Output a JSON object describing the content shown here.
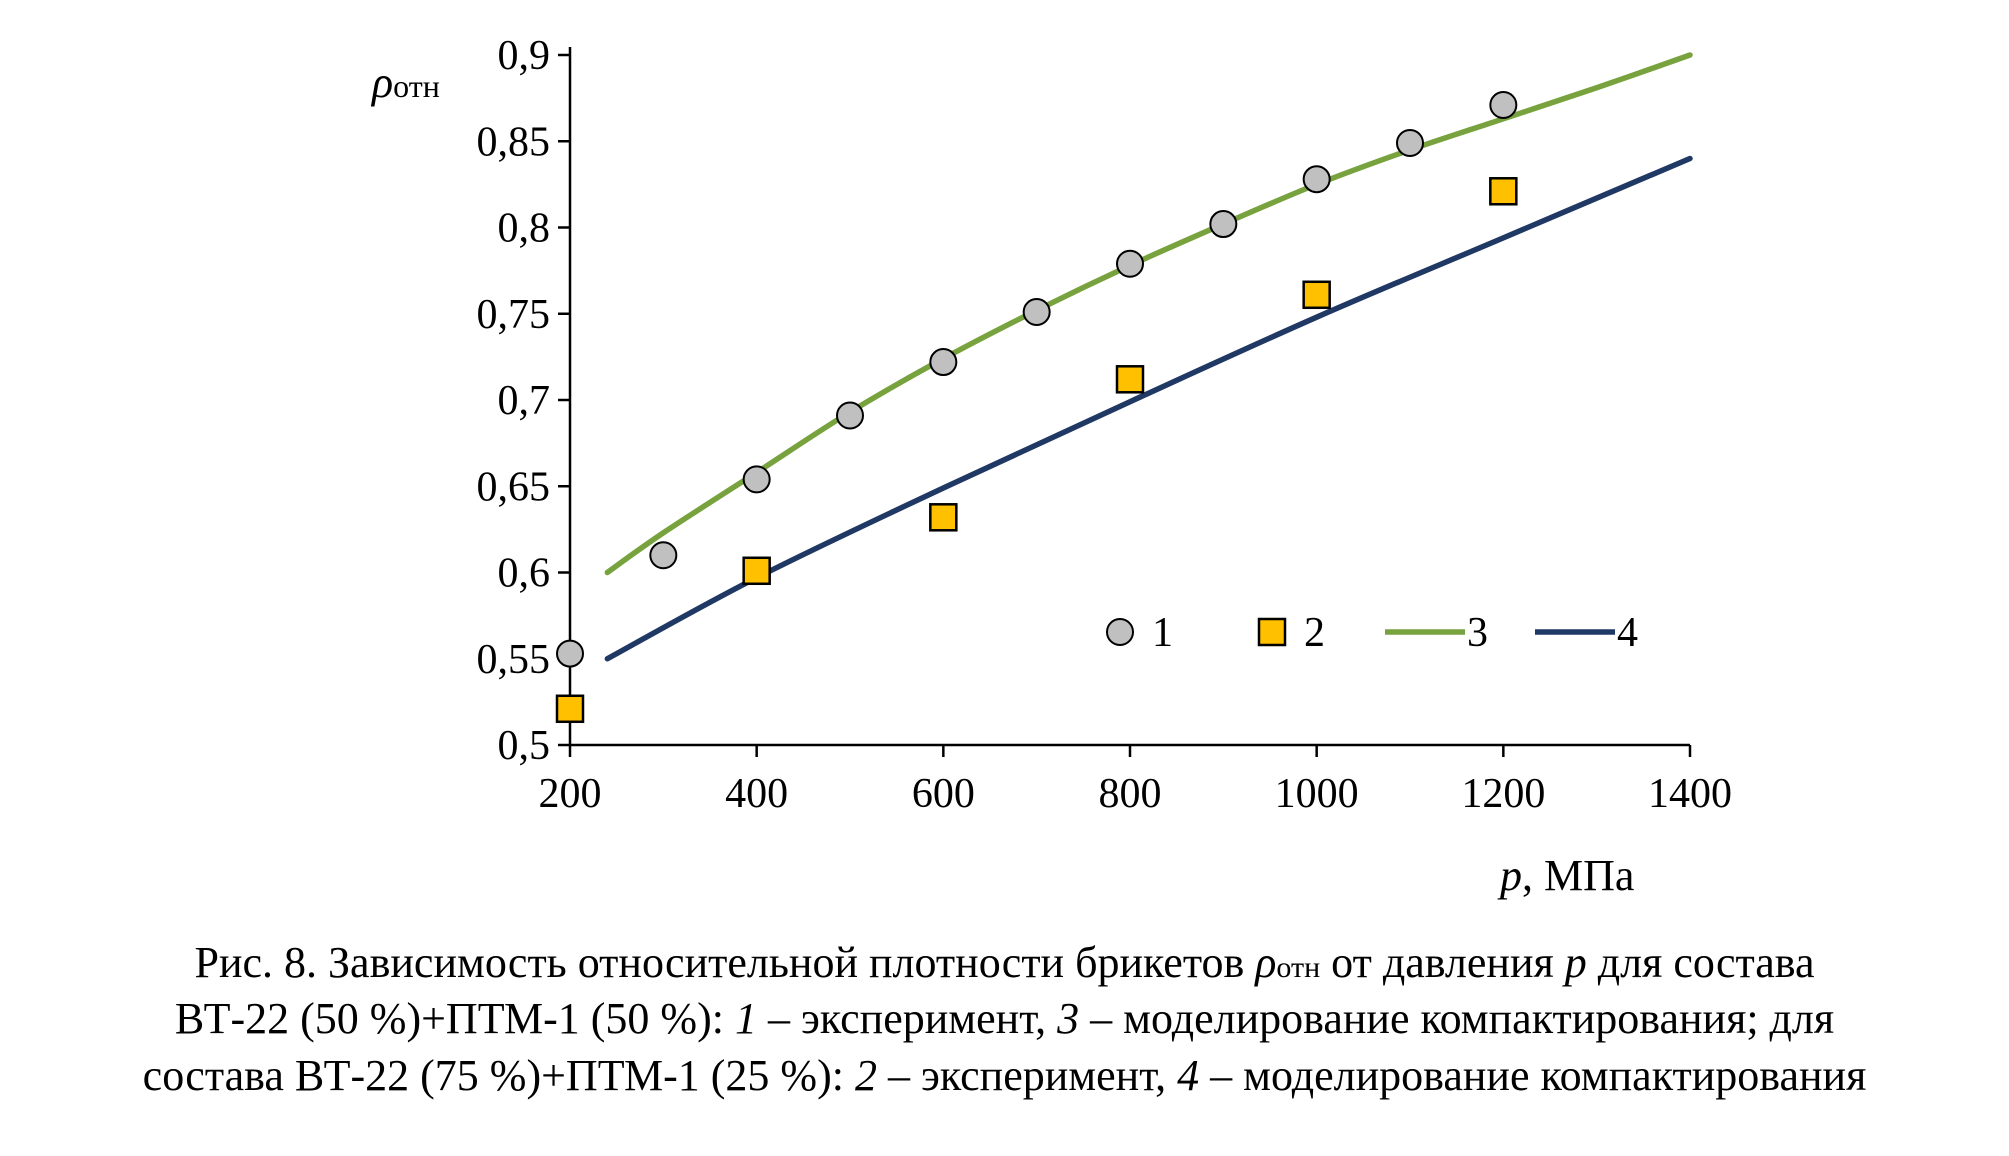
{
  "chart_data": {
    "type": "scatter",
    "xlabel_var": "p",
    "xlabel_unit": ", МПа",
    "ylabel_var": "ρ",
    "ylabel_sub": "отн",
    "xlim": [
      200,
      1400
    ],
    "ylim": [
      0.5,
      0.9
    ],
    "xticks": [
      200,
      400,
      600,
      800,
      1000,
      1200,
      1400
    ],
    "xtick_labels": [
      "200",
      "400",
      "600",
      "800",
      "1000",
      "1200",
      "1400"
    ],
    "yticks": [
      0.5,
      0.55,
      0.6,
      0.65,
      0.7,
      0.75,
      0.8,
      0.85,
      0.9
    ],
    "ytick_labels": [
      "0,5",
      "0,55",
      "0,6",
      "0,65",
      "0,7",
      "0,75",
      "0,8",
      "0,85",
      "0,9"
    ],
    "grid": false,
    "legend_position": "lower-right",
    "series": [
      {
        "name": "1",
        "kind": "points",
        "marker": "circle",
        "color": "#c0c0c0",
        "edge": "#000000",
        "x": [
          200,
          300,
          400,
          500,
          600,
          700,
          800,
          900,
          1000,
          1100,
          1200
        ],
        "y": [
          0.553,
          0.61,
          0.654,
          0.691,
          0.722,
          0.751,
          0.779,
          0.802,
          0.828,
          0.849,
          0.871
        ]
      },
      {
        "name": "2",
        "kind": "points",
        "marker": "square",
        "color": "#ffc000",
        "edge": "#000000",
        "x": [
          200,
          400,
          600,
          800,
          1000,
          1200
        ],
        "y": [
          0.521,
          0.601,
          0.632,
          0.712,
          0.761,
          0.821
        ]
      },
      {
        "name": "3",
        "kind": "line",
        "color": "#77a23d",
        "x": [
          240,
          300,
          400,
          500,
          600,
          700,
          800,
          900,
          1000,
          1100,
          1200,
          1300,
          1400
        ],
        "y": [
          0.6,
          0.623,
          0.658,
          0.693,
          0.724,
          0.752,
          0.778,
          0.802,
          0.825,
          0.845,
          0.863,
          0.881,
          0.9
        ]
      },
      {
        "name": "4",
        "kind": "line",
        "color": "#1f3864",
        "x": [
          240,
          400,
          600,
          800,
          1000,
          1200,
          1400
        ],
        "y": [
          0.55,
          0.597,
          0.649,
          0.699,
          0.748,
          0.794,
          0.84
        ]
      }
    ]
  },
  "caption": {
    "line1_a": "Рис. 8. Зависимость относительной плотности брикетов ",
    "line1_rho": "ρ",
    "line1_sub": "отн",
    "line1_b": " от давления ",
    "line1_p": "p",
    "line1_c": " для состава",
    "line2_a": "ВТ-22 (50 %)+ПТМ-1 (50 %): ",
    "line2_n1": "1",
    "line2_b": " – эксперимент, ",
    "line2_n3": "3",
    "line2_c": " – моделирование компактирования; для",
    "line3_a": "состава ВТ-22 (75 %)+ПТМ-1 (25 %): ",
    "line3_n2": "2",
    "line3_b": " – эксперимент, ",
    "line3_n4": "4",
    "line3_c": " – моделирование компактирования"
  }
}
